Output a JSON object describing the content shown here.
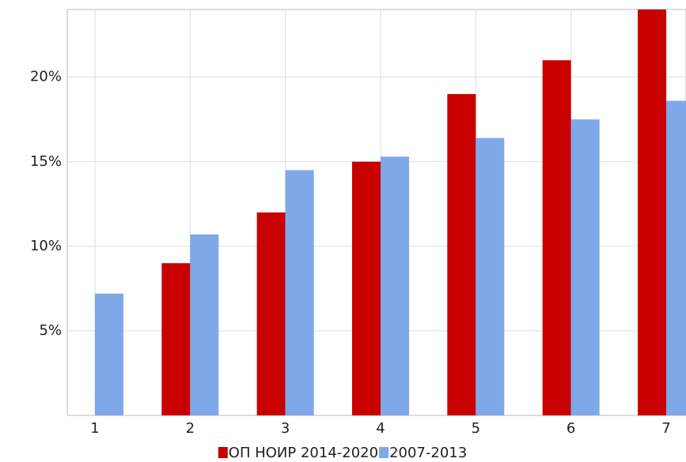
{
  "chart_data": {
    "type": "bar",
    "categories": [
      "1",
      "2",
      "3",
      "4",
      "5",
      "6",
      "7"
    ],
    "series": [
      {
        "name": "ОП НОИР 2014-2020",
        "color": "#c90000",
        "values": [
          null,
          9,
          12,
          15,
          19,
          21,
          24
        ]
      },
      {
        "name": "2007-2013",
        "color": "#7fa8e9",
        "values": [
          7.2,
          10.7,
          14.5,
          15.3,
          16.4,
          17.5,
          18.6
        ]
      }
    ],
    "ylim": [
      0,
      24
    ],
    "yticks": [
      {
        "value": 5,
        "label": "5%"
      },
      {
        "value": 10,
        "label": "10%"
      },
      {
        "value": 15,
        "label": "15%"
      },
      {
        "value": 20,
        "label": "20%"
      }
    ],
    "grid": true,
    "legend": "bottom"
  }
}
